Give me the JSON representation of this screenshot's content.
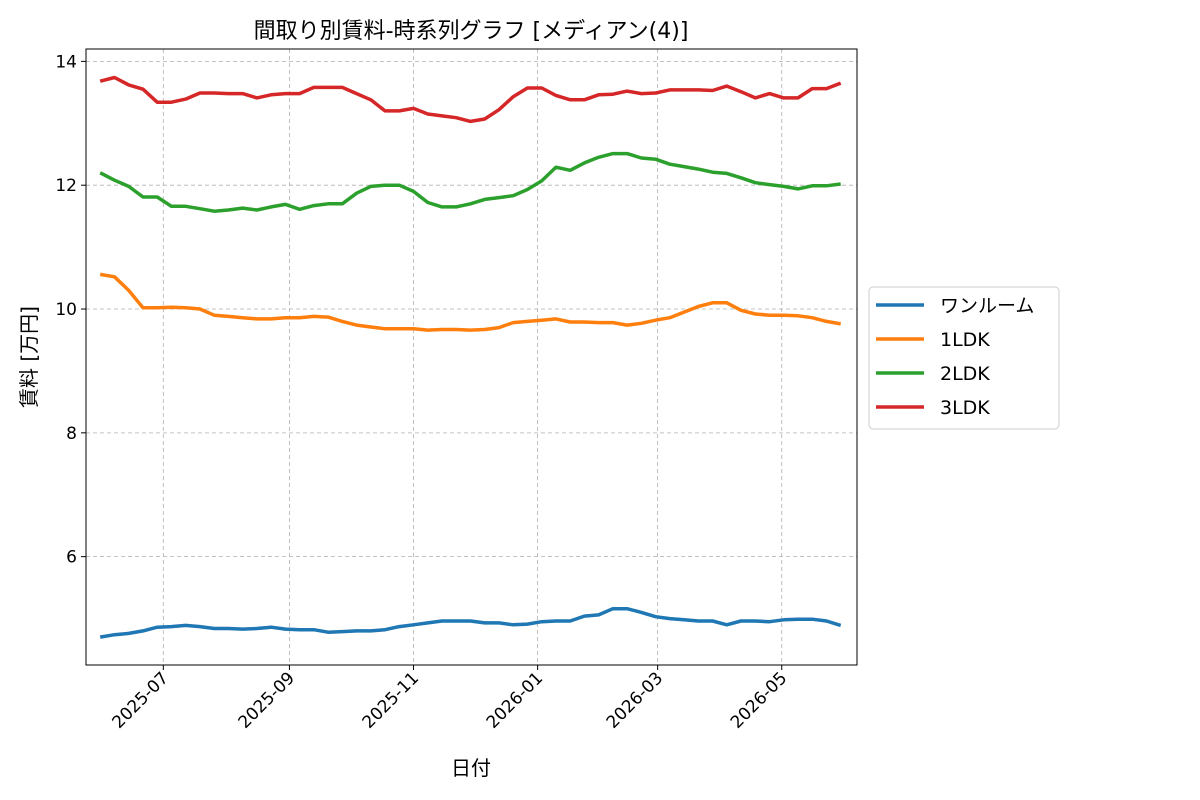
{
  "chart_data": {
    "type": "line",
    "title": "間取り別賃料-時系列グラフ [メディアン(4)]",
    "xlabel": "日付",
    "ylabel": "賃料 [万円]",
    "xlim": [
      "2025-05-24",
      "2026-06-07"
    ],
    "ylim": [
      4.25,
      14.2
    ],
    "yticks": [
      6,
      8,
      10,
      12,
      14
    ],
    "xticks": [
      "2025-07-01",
      "2025-09-01",
      "2025-11-01",
      "2026-01-01",
      "2026-03-01",
      "2026-05-01"
    ],
    "xtick_labels": [
      "2025-07",
      "2025-09",
      "2025-11",
      "2026-01",
      "2026-03",
      "2026-05"
    ],
    "grid": true,
    "legend_placement": "right-outside",
    "x": [
      "2025-05-31",
      "2025-06-07",
      "2025-06-14",
      "2025-06-21",
      "2025-06-28",
      "2025-07-05",
      "2025-07-12",
      "2025-07-19",
      "2025-07-26",
      "2025-08-02",
      "2025-08-09",
      "2025-08-16",
      "2025-08-23",
      "2025-08-30",
      "2025-09-06",
      "2025-09-13",
      "2025-09-20",
      "2025-09-27",
      "2025-10-04",
      "2025-10-11",
      "2025-10-18",
      "2025-10-25",
      "2025-11-01",
      "2025-11-08",
      "2025-11-15",
      "2025-11-22",
      "2025-11-29",
      "2025-12-06",
      "2025-12-13",
      "2025-12-20",
      "2025-12-27",
      "2026-01-03",
      "2026-01-10",
      "2026-01-17",
      "2026-01-24",
      "2026-01-31",
      "2026-02-07",
      "2026-02-14",
      "2026-02-21",
      "2026-02-28",
      "2026-03-07",
      "2026-03-14",
      "2026-03-21",
      "2026-03-28",
      "2026-04-04",
      "2026-04-11",
      "2026-04-18",
      "2026-04-25",
      "2026-05-02",
      "2026-05-09",
      "2026-05-16",
      "2026-05-23",
      "2026-05-30"
    ],
    "series": [
      {
        "name": "ワンルーム",
        "color": "#1f77b4",
        "values": [
          4.7,
          4.74,
          4.76,
          4.8,
          4.86,
          4.87,
          4.89,
          4.87,
          4.84,
          4.84,
          4.83,
          4.84,
          4.86,
          4.83,
          4.82,
          4.82,
          4.78,
          4.79,
          4.8,
          4.8,
          4.82,
          4.87,
          4.9,
          4.93,
          4.96,
          4.96,
          4.96,
          4.93,
          4.93,
          4.9,
          4.91,
          4.95,
          4.96,
          4.96,
          5.04,
          5.06,
          5.16,
          5.16,
          5.1,
          5.03,
          5.0,
          4.98,
          4.96,
          4.96,
          4.9,
          4.96,
          4.96,
          4.95,
          4.98,
          4.99,
          4.99,
          4.96,
          4.89
        ]
      },
      {
        "name": "1LDK",
        "color": "#ff7f0e",
        "values": [
          10.56,
          10.52,
          10.3,
          10.02,
          10.02,
          10.03,
          10.02,
          10.0,
          9.9,
          9.88,
          9.86,
          9.84,
          9.84,
          9.86,
          9.86,
          9.88,
          9.87,
          9.8,
          9.74,
          9.71,
          9.68,
          9.68,
          9.68,
          9.66,
          9.67,
          9.67,
          9.66,
          9.67,
          9.7,
          9.78,
          9.8,
          9.82,
          9.84,
          9.79,
          9.79,
          9.78,
          9.78,
          9.74,
          9.77,
          9.82,
          9.86,
          9.95,
          10.04,
          10.1,
          10.1,
          9.98,
          9.92,
          9.9,
          9.9,
          9.89,
          9.86,
          9.8,
          9.76
        ]
      },
      {
        "name": "2LDK",
        "color": "#2ca02c",
        "values": [
          12.2,
          12.08,
          11.98,
          11.81,
          11.81,
          11.66,
          11.66,
          11.62,
          11.58,
          11.6,
          11.63,
          11.6,
          11.65,
          11.69,
          11.61,
          11.67,
          11.7,
          11.7,
          11.87,
          11.98,
          12.0,
          12.0,
          11.9,
          11.72,
          11.65,
          11.65,
          11.7,
          11.77,
          11.8,
          11.83,
          11.93,
          12.07,
          12.29,
          12.24,
          12.36,
          12.45,
          12.51,
          12.51,
          12.44,
          12.42,
          12.34,
          12.3,
          12.26,
          12.21,
          12.19,
          12.12,
          12.04,
          12.01,
          11.98,
          11.94,
          11.99,
          11.99,
          12.02
        ]
      },
      {
        "name": "3LDK",
        "color": "#d62728",
        "values": [
          13.68,
          13.74,
          13.62,
          13.55,
          13.34,
          13.34,
          13.39,
          13.49,
          13.49,
          13.48,
          13.48,
          13.41,
          13.46,
          13.48,
          13.48,
          13.58,
          13.58,
          13.58,
          13.48,
          13.38,
          13.2,
          13.2,
          13.24,
          13.15,
          13.12,
          13.09,
          13.03,
          13.07,
          13.22,
          13.43,
          13.57,
          13.57,
          13.45,
          13.38,
          13.38,
          13.46,
          13.47,
          13.52,
          13.48,
          13.49,
          13.54,
          13.54,
          13.54,
          13.53,
          13.6,
          13.51,
          13.41,
          13.48,
          13.41,
          13.41,
          13.56,
          13.56,
          13.65
        ]
      }
    ]
  }
}
